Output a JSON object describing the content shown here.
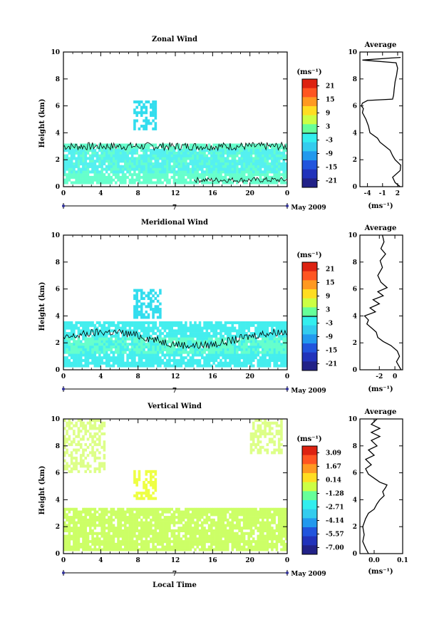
{
  "figure": {
    "xlabel": "Local Time",
    "date_label": "May 2009",
    "day_label": "7",
    "x_ticks": [
      "0",
      "4",
      "8",
      "12",
      "16",
      "20",
      "0"
    ],
    "y_ticks": [
      "0",
      "2",
      "4",
      "6",
      "8",
      "10"
    ],
    "ylabel": "Height (km)",
    "units": "(ms⁻¹)"
  },
  "chart_data": [
    {
      "id": "zonal",
      "type": "heatmap",
      "title": "Zonal Wind",
      "xlabel": "",
      "ylabel": "Height (km)",
      "xlim": [
        0,
        24
      ],
      "ylim": [
        0,
        10
      ],
      "colorbar": {
        "label": "(ms⁻¹)",
        "ticks": [
          "21",
          "15",
          "9",
          "3",
          "-3",
          "-9",
          "-15",
          "-21"
        ],
        "contour_line": 0
      },
      "regions": [
        {
          "x": [
            0,
            24
          ],
          "y": [
            0.3,
            3.2
          ],
          "value": 0,
          "color": "#66ffcc"
        },
        {
          "x": [
            0,
            24
          ],
          "y": [
            1.0,
            2.8
          ],
          "value": -2,
          "color": "#55f0f0"
        },
        {
          "x": [
            7.5,
            10
          ],
          "y": [
            4.2,
            6.3
          ],
          "value": -3,
          "color": "#33ddee"
        }
      ],
      "average_profile": {
        "title": "Average",
        "xlabel": "(ms⁻¹)",
        "x_ticks": [
          "-4",
          "-1",
          "2"
        ],
        "xlim": [
          -5.5,
          3
        ],
        "points": [
          [
            2.5,
            0.0
          ],
          [
            1.5,
            0.3
          ],
          [
            1.0,
            0.7
          ],
          [
            2.5,
            1.2
          ],
          [
            2.6,
            1.6
          ],
          [
            1.5,
            2.0
          ],
          [
            1.0,
            2.3
          ],
          [
            0.5,
            2.7
          ],
          [
            -0.5,
            3.0
          ],
          [
            -1.5,
            3.3
          ],
          [
            -2.0,
            3.6
          ],
          [
            -3.5,
            4.0
          ],
          [
            -3.8,
            4.5
          ],
          [
            -4.3,
            5.0
          ],
          [
            -5.0,
            5.5
          ],
          [
            -4.8,
            5.8
          ],
          [
            -5.2,
            6.0
          ],
          [
            -5.0,
            6.2
          ],
          [
            -4.0,
            6.4
          ],
          [
            1.0,
            6.5
          ],
          [
            1.2,
            6.8
          ],
          [
            1.3,
            7.2
          ],
          [
            1.5,
            7.8
          ],
          [
            1.8,
            8.3
          ],
          [
            2.0,
            8.8
          ],
          [
            1.7,
            9.2
          ],
          [
            -5.0,
            9.4
          ],
          [
            0.5,
            9.55
          ],
          [
            2.6,
            9.6
          ]
        ]
      }
    },
    {
      "id": "meridional",
      "type": "heatmap",
      "title": "Meridional Wind",
      "xlabel": "",
      "ylabel": "Height (km)",
      "xlim": [
        0,
        24
      ],
      "ylim": [
        0,
        10
      ],
      "colorbar": {
        "label": "(ms⁻¹)",
        "ticks": [
          "21",
          "15",
          "9",
          "3",
          "-3",
          "-9",
          "-15",
          "-21"
        ],
        "contour_line": 0
      },
      "regions": [
        {
          "x": [
            0,
            24
          ],
          "y": [
            0.3,
            3.5
          ],
          "value": -3,
          "color": "#44eeee"
        },
        {
          "x": [
            0,
            24
          ],
          "y": [
            1.3,
            2.3
          ],
          "value": 1,
          "color": "#66ffcc"
        },
        {
          "x": [
            7.5,
            10.5
          ],
          "y": [
            3.8,
            6.0
          ],
          "value": -4,
          "color": "#33ddee"
        }
      ],
      "average_profile": {
        "title": "Average",
        "xlabel": "(ms⁻¹)",
        "x_ticks": [
          "-2",
          "0"
        ],
        "xlim": [
          -4.5,
          1
        ],
        "points": [
          [
            0.8,
            0.0
          ],
          [
            0.5,
            0.3
          ],
          [
            0.2,
            0.6
          ],
          [
            0.6,
            1.0
          ],
          [
            0.3,
            1.4
          ],
          [
            -0.5,
            1.8
          ],
          [
            -1.5,
            2.1
          ],
          [
            -2.2,
            2.4
          ],
          [
            -2.4,
            2.8
          ],
          [
            -3.0,
            3.1
          ],
          [
            -3.6,
            3.4
          ],
          [
            -3.4,
            3.7
          ],
          [
            -3.9,
            4.0
          ],
          [
            -2.5,
            4.3
          ],
          [
            -3.2,
            4.6
          ],
          [
            -2.0,
            4.9
          ],
          [
            -2.8,
            5.2
          ],
          [
            -1.5,
            5.5
          ],
          [
            -2.2,
            5.8
          ],
          [
            -1.0,
            6.1
          ],
          [
            -1.8,
            6.5
          ],
          [
            -2.2,
            7.0
          ],
          [
            -1.6,
            7.6
          ],
          [
            -1.9,
            8.1
          ],
          [
            -1.2,
            8.6
          ],
          [
            -1.8,
            9.0
          ],
          [
            -1.4,
            9.5
          ],
          [
            -1.6,
            10.0
          ]
        ]
      }
    },
    {
      "id": "vertical",
      "type": "heatmap",
      "title": "Vertical Wind",
      "xlabel": "Local Time",
      "ylabel": "Height (km)",
      "xlim": [
        0,
        24
      ],
      "ylim": [
        0,
        10
      ],
      "colorbar": {
        "label": "(ms⁻¹)",
        "ticks": [
          "3.09",
          "1.67",
          "0.14",
          "-1.28",
          "-2.71",
          "-4.14",
          "-5.57",
          "-7.00"
        ],
        "contour_line": null
      },
      "regions": [
        {
          "x": [
            0,
            24
          ],
          "y": [
            0.2,
            3.4
          ],
          "value": 0.1,
          "color": "#ccff66"
        },
        {
          "x": [
            0,
            4.5
          ],
          "y": [
            6.0,
            10
          ],
          "value": 0.1,
          "color": "#ddff88"
        },
        {
          "x": [
            7.6,
            9.8
          ],
          "y": [
            4.0,
            6.2
          ],
          "value": 0.5,
          "color": "#eeff44"
        },
        {
          "x": [
            20,
            23.5
          ],
          "y": [
            7.5,
            10
          ],
          "value": 0.1,
          "color": "#ddff88"
        }
      ],
      "average_profile": {
        "title": "Average",
        "xlabel": "(ms⁻¹)",
        "x_ticks": [
          "0.0",
          "0.1"
        ],
        "xlim": [
          -0.05,
          0.1
        ],
        "points": [
          [
            -0.02,
            0.0
          ],
          [
            -0.03,
            0.4
          ],
          [
            -0.04,
            0.9
          ],
          [
            -0.035,
            1.4
          ],
          [
            -0.04,
            2.0
          ],
          [
            -0.03,
            2.6
          ],
          [
            -0.02,
            3.0
          ],
          [
            0.0,
            3.3
          ],
          [
            0.01,
            3.7
          ],
          [
            0.02,
            4.0
          ],
          [
            0.035,
            4.3
          ],
          [
            0.03,
            4.6
          ],
          [
            0.04,
            4.9
          ],
          [
            0.045,
            5.1
          ],
          [
            0.02,
            5.3
          ],
          [
            0.0,
            5.6
          ],
          [
            -0.02,
            5.9
          ],
          [
            -0.03,
            6.3
          ],
          [
            -0.01,
            6.6
          ],
          [
            -0.03,
            7.0
          ],
          [
            0.0,
            7.3
          ],
          [
            -0.02,
            7.7
          ],
          [
            0.01,
            8.0
          ],
          [
            -0.01,
            8.4
          ],
          [
            0.02,
            8.7
          ],
          [
            -0.01,
            9.0
          ],
          [
            0.02,
            9.3
          ],
          [
            -0.01,
            9.6
          ],
          [
            0.01,
            10.0
          ]
        ]
      }
    }
  ],
  "colors": {
    "scale": [
      "#dd2211",
      "#ff5522",
      "#ff9922",
      "#ffdd22",
      "#ccff44",
      "#66ff99",
      "#33eeee",
      "#33ccee",
      "#2299ee",
      "#2255dd",
      "#2233bb",
      "#222288"
    ]
  }
}
